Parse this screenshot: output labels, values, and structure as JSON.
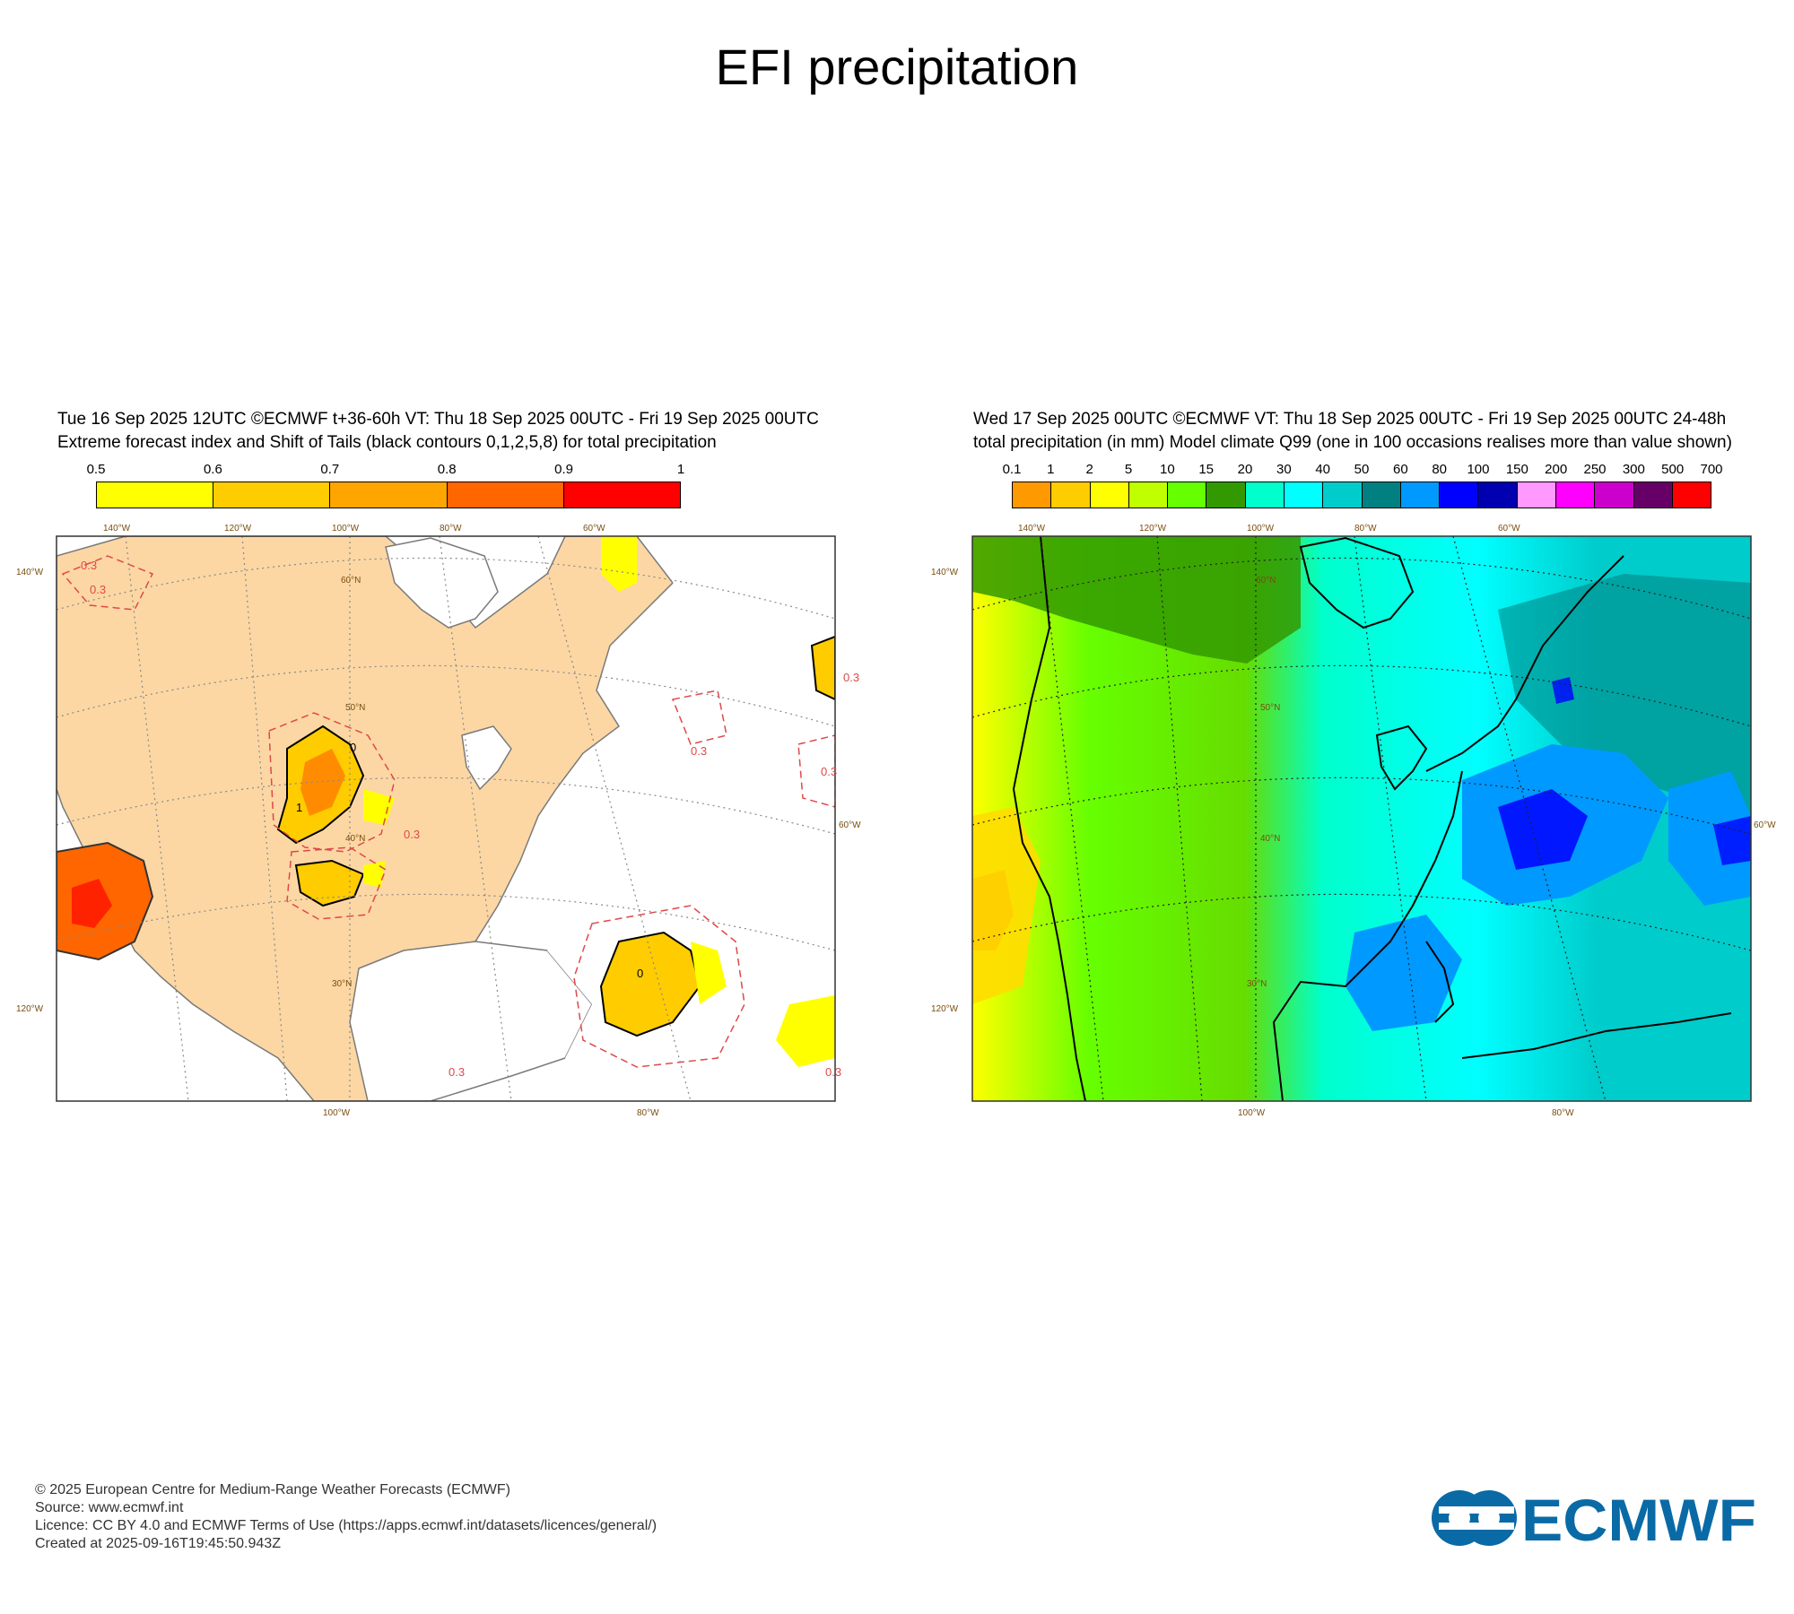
{
  "page": {
    "title": "EFI precipitation"
  },
  "left_panel": {
    "header_line1": "Tue 16 Sep 2025 12UTC ©ECMWF t+36-60h  VT: Thu 18 Sep 2025 00UTC - Fri 19 Sep 2025 00UTC",
    "header_line2": "Extreme forecast index and Shift of Tails (black contours 0,1,2,5,8) for total precipitation",
    "colorbar": {
      "labels": [
        "0.5",
        "0.6",
        "0.7",
        "0.8",
        "0.9",
        "1"
      ],
      "colors": [
        "#ffff00",
        "#ffcc00",
        "#ffa500",
        "#ff6600",
        "#ff0000"
      ]
    },
    "map": {
      "lon_labels_top": [
        "140°W",
        "120°W",
        "100°W",
        "80°W",
        "60°W"
      ],
      "lon_labels_bottom": [
        "100°W",
        "80°W"
      ],
      "lat_labels": [
        "60°N",
        "50°N",
        "40°N",
        "30°N"
      ],
      "side_labels_left": [
        "140°W",
        "120°W"
      ],
      "side_labels_right": [
        "60°W"
      ],
      "contour_labels": [
        "0.3",
        "0.3",
        "0.3",
        "0.3",
        "0.3",
        "0.3",
        "0.3",
        "0.3",
        "0",
        "0",
        "1"
      ]
    }
  },
  "right_panel": {
    "header_line1": "Wed 17 Sep 2025 00UTC ©ECMWF VT: Thu 18 Sep 2025 00UTC - Fri 19 Sep 2025 00UTC   24-48h",
    "header_line2": "total precipitation  (in mm)  Model climate Q99 (one in 100 occasions realises more than value shown)",
    "colorbar": {
      "labels": [
        "0.1",
        "1",
        "2",
        "5",
        "10",
        "15",
        "20",
        "30",
        "40",
        "50",
        "60",
        "80",
        "100",
        "150",
        "200",
        "250",
        "300",
        "500",
        "700"
      ],
      "colors": [
        "#ff9900",
        "#ffcc00",
        "#ffff00",
        "#bfff00",
        "#66ff00",
        "#339900",
        "#00ffcc",
        "#00ffff",
        "#00cccc",
        "#008080",
        "#0099ff",
        "#0000ff",
        "#0000b0",
        "#ff99ff",
        "#ff00ff",
        "#cc00cc",
        "#660066",
        "#ff0000"
      ]
    },
    "map": {
      "lon_labels_top": [
        "140°W",
        "120°W",
        "100°W",
        "80°W",
        "60°W"
      ],
      "lon_labels_bottom": [
        "100°W",
        "80°W"
      ],
      "lat_labels": [
        "60°N",
        "50°N",
        "40°N",
        "30°N"
      ],
      "side_labels_left": [
        "140°W",
        "120°W"
      ],
      "side_labels_right": [
        "60°W"
      ]
    }
  },
  "footer": {
    "line1": "© 2025 European Centre for Medium-Range Weather Forecasts (ECMWF)",
    "line2": "Source: www.ecmwf.int",
    "line3": "Licence: CC BY 4.0 and ECMWF Terms of Use (https://apps.ecmwf.int/datasets/licences/general/)",
    "line4": "Created at 2025-09-16T19:45:50.943Z"
  },
  "logo": {
    "text": "ECMWF",
    "color": "#0a6aa6"
  }
}
